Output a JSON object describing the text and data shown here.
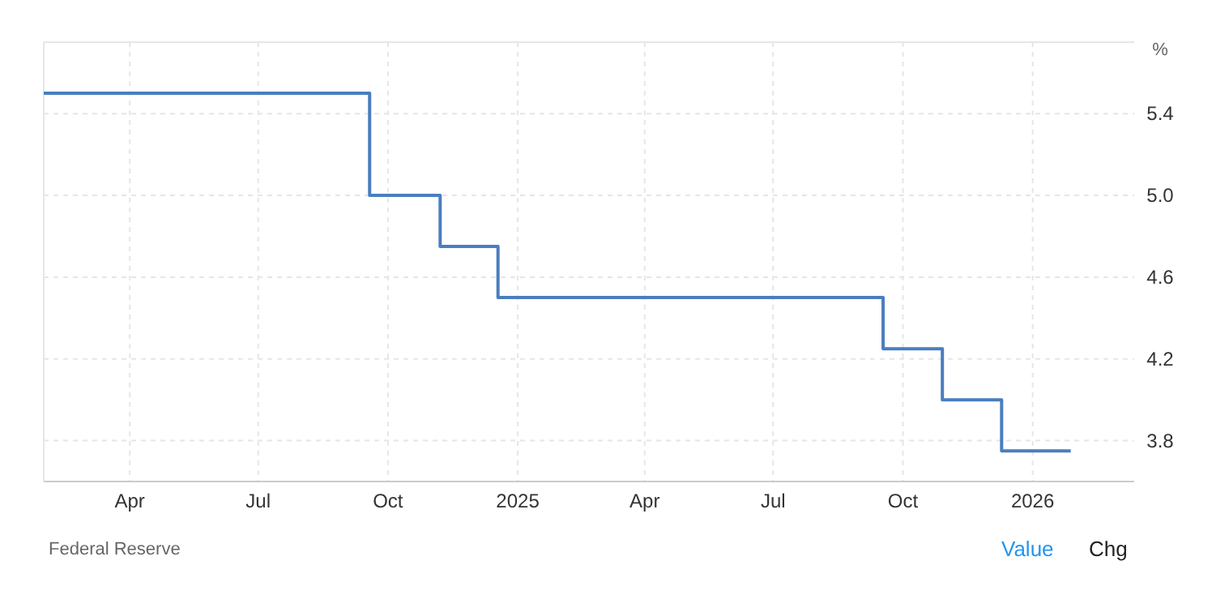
{
  "chart_data": {
    "type": "step",
    "ylabel": "%",
    "x": [
      "2024-01-31",
      "2024-09-18",
      "2024-11-07",
      "2024-12-18",
      "2025-09-17",
      "2025-10-29",
      "2025-12-10",
      "2026-01-28"
    ],
    "series": [
      {
        "color": "#4a7ebf",
        "values": [
          5.5,
          5.0,
          4.75,
          4.5,
          4.25,
          4.0,
          3.75,
          3.75
        ]
      }
    ],
    "xlim": [
      "2024-01-31",
      "2026-03-14"
    ],
    "xticks": [
      {
        "value": "2024-04-01",
        "label": "Apr"
      },
      {
        "value": "2024-07-01",
        "label": "Jul"
      },
      {
        "value": "2024-10-01",
        "label": "Oct"
      },
      {
        "value": "2025-01-01",
        "label": "2025"
      },
      {
        "value": "2025-04-01",
        "label": "Apr"
      },
      {
        "value": "2025-07-01",
        "label": "Jul"
      },
      {
        "value": "2025-10-01",
        "label": "Oct"
      },
      {
        "value": "2026-01-01",
        "label": "2026"
      }
    ],
    "ylim": [
      3.6,
      5.75
    ],
    "yticks": [
      3.8,
      4.2,
      4.6,
      {
        "value": 5,
        "label": "5.0"
      },
      5.4
    ],
    "grid": true,
    "marker": "none",
    "line_style": "solid",
    "annotations": [
      "Federal Reserve",
      "Value",
      "Chg"
    ]
  }
}
